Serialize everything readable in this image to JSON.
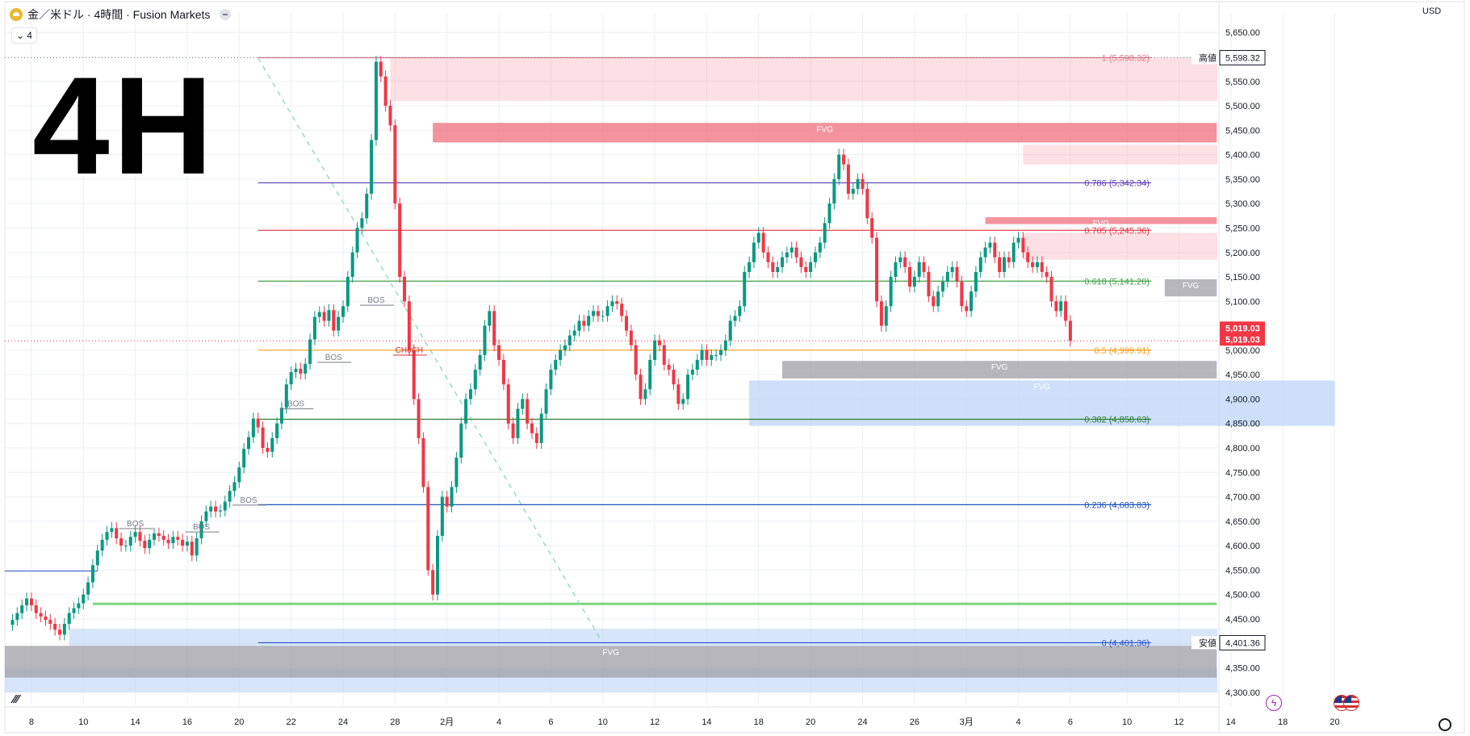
{
  "header": {
    "title": "金／米ドル · 4時間 · Fusion Markets",
    "collapse_label": "4",
    "timeframe_big": "4H",
    "currency": "USD"
  },
  "colors": {
    "up": "#089981",
    "down": "#f23645",
    "fvg_red": "#f7a6ae",
    "fvg_red_strong": "#ee6f7d",
    "fvg_blue": "#bcd4f7",
    "fvg_gray": "#9e9ea6",
    "price_tag": "#f23645"
  },
  "chart_data": {
    "type": "candlestick",
    "symbol": "金／米ドル",
    "interval": "4時間",
    "broker": "Fusion Markets",
    "ylim": [
      4270,
      5690
    ],
    "y_ticks": [
      4300,
      4350,
      4400,
      4450,
      4500,
      4550,
      4600,
      4650,
      4700,
      4750,
      4800,
      4850,
      4900,
      4950,
      5000,
      5050,
      5100,
      5150,
      5200,
      5250,
      5300,
      5350,
      5400,
      5450,
      5500,
      5550,
      5600,
      5650
    ],
    "y_tick_labels": [
      "4,300.00",
      "4,350.00",
      "4,400.00",
      "4,450.00",
      "4,500.00",
      "4,550.00",
      "4,600.00",
      "4,650.00",
      "4,700.00",
      "4,750.00",
      "4,800.00",
      "4,850.00",
      "4,900.00",
      "4,950.00",
      "5,000.00",
      "5,050.00",
      "5,100.00",
      "5,150.00",
      "5,200.00",
      "5,250.00",
      "5,300.00",
      "5,350.00",
      "5,400.00",
      "5,450.00",
      "5,500.00",
      "5,550.00",
      "5,600.00",
      "5,650.00"
    ],
    "x_ticks": [
      {
        "label": "8",
        "i": 4
      },
      {
        "label": "10",
        "i": 15
      },
      {
        "label": "14",
        "i": 26
      },
      {
        "label": "16",
        "i": 37
      },
      {
        "label": "20",
        "i": 48
      },
      {
        "label": "22",
        "i": 59
      },
      {
        "label": "24",
        "i": 70
      },
      {
        "label": "28",
        "i": 81
      },
      {
        "label": "2月",
        "i": 92
      },
      {
        "label": "4",
        "i": 103
      },
      {
        "label": "6",
        "i": 114
      },
      {
        "label": "10",
        "i": 125
      },
      {
        "label": "12",
        "i": 136
      },
      {
        "label": "14",
        "i": 147
      },
      {
        "label": "18",
        "i": 158
      },
      {
        "label": "20",
        "i": 169
      },
      {
        "label": "24",
        "i": 180
      },
      {
        "label": "26",
        "i": 191
      },
      {
        "label": "3月",
        "i": 202
      },
      {
        "label": "4",
        "i": 213
      },
      {
        "label": "6",
        "i": 224
      },
      {
        "label": "10",
        "i": 236
      },
      {
        "label": "12",
        "i": 247
      },
      {
        "label": "14",
        "i": 258
      },
      {
        "label": "18",
        "i": 269
      },
      {
        "label": "20",
        "i": 280
      }
    ],
    "closes": [
      4448,
      4462,
      4478,
      4492,
      4478,
      4462,
      4455,
      4448,
      4440,
      4428,
      4418,
      4440,
      4462,
      4472,
      4482,
      4500,
      4525,
      4560,
      4590,
      4612,
      4628,
      4636,
      4615,
      4600,
      4600,
      4618,
      4628,
      4610,
      4595,
      4612,
      4625,
      4620,
      4612,
      4605,
      4618,
      4612,
      4600,
      4608,
      4580,
      4615,
      4650,
      4670,
      4680,
      4670,
      4672,
      4690,
      4712,
      4730,
      4760,
      4798,
      4822,
      4860,
      4842,
      4800,
      4792,
      4820,
      4850,
      4882,
      4930,
      4955,
      4962,
      4952,
      4972,
      5022,
      5068,
      5078,
      5060,
      5082,
      5040,
      5068,
      5090,
      5150,
      5200,
      5250,
      5270,
      5320,
      5430,
      5590,
      5560,
      5500,
      5460,
      5300,
      5150,
      5100,
      5000,
      4900,
      4820,
      4720,
      4550,
      4500,
      4620,
      4700,
      4680,
      4720,
      4780,
      4850,
      4900,
      4920,
      4960,
      4990,
      5050,
      5080,
      5010,
      4980,
      4930,
      4850,
      4820,
      4880,
      4900,
      4850,
      4830,
      4810,
      4870,
      4920,
      4960,
      4980,
      5000,
      5010,
      5030,
      5040,
      5060,
      5050,
      5070,
      5080,
      5070,
      5070,
      5090,
      5100,
      5095,
      5070,
      5040,
      5010,
      4950,
      4900,
      4920,
      4980,
      5020,
      5010,
      4970,
      4960,
      4930,
      4890,
      4900,
      4950,
      4960,
      4980,
      5000,
      4980,
      4990,
      4990,
      5000,
      5020,
      5060,
      5070,
      5090,
      5160,
      5180,
      5220,
      5240,
      5200,
      5180,
      5160,
      5170,
      5190,
      5200,
      5210,
      5190,
      5170,
      5160,
      5180,
      5200,
      5220,
      5260,
      5300,
      5350,
      5400,
      5380,
      5320,
      5330,
      5350,
      5330,
      5270,
      5230,
      5100,
      5050,
      5090,
      5150,
      5180,
      5190,
      5170,
      5130,
      5150,
      5180,
      5160,
      5110,
      5090,
      5120,
      5140,
      5160,
      5170,
      5140,
      5090,
      5080,
      5120,
      5160,
      5190,
      5210,
      5220,
      5190,
      5160,
      5190,
      5180,
      5220,
      5230,
      5200,
      5180,
      5170,
      5180,
      5160,
      5150,
      5100,
      5080,
      5100,
      5060,
      5019
    ],
    "horizontal_levels": [
      {
        "label": "0.786 (5,342.34)",
        "value": 5342.34,
        "color": "#5b3fb5"
      },
      {
        "label": "0.705 (5,245.36)",
        "value": 5245.36,
        "color": "#e0303e"
      },
      {
        "label": "0.618 (5,141.20)",
        "value": 5141.2,
        "color": "#43a047"
      },
      {
        "label": "0.5 (4,999.91)",
        "value": 4999.91,
        "color": "#f59d1a"
      },
      {
        "label": "0.382 (4,858.63)",
        "value": 4858.63,
        "color": "#2e7d32"
      },
      {
        "label": "0.236 (4,683.83)",
        "value": 4683.83,
        "color": "#1e53b7"
      },
      {
        "label": "1 (5,598.32)",
        "value": 5598.32,
        "color": "#e57b8a"
      },
      {
        "label": "0 (4,401.36)",
        "value": 4401.36,
        "color": "#2952c9"
      }
    ],
    "fvg_zones": [
      {
        "label": "FVG",
        "top": 5465,
        "bottom": 5425,
        "i0": 89,
        "i1": 255,
        "color": "fvg_red_strong"
      },
      {
        "label": "FVG",
        "top": 5272,
        "bottom": 5258,
        "i0": 206,
        "i1": 255,
        "color": "fvg_red_strong"
      },
      {
        "label": "FVG",
        "top": 4978,
        "bottom": 4942,
        "i0": 163,
        "i1": 255,
        "color": "fvg_gray"
      },
      {
        "label": "FVG",
        "top": 4938,
        "bottom": 4845,
        "i0": 156,
        "i1": 280,
        "color": "fvg_blue"
      },
      {
        "label": "FVG",
        "top": 4395,
        "bottom": 4330,
        "i0": 0,
        "i1": 255,
        "color": "fvg_gray"
      },
      {
        "label": "FVG",
        "top": 5145,
        "bottom": 5110,
        "i0": 244,
        "i1": 255,
        "color": "fvg_gray"
      }
    ],
    "structure_labels": [
      {
        "label": "BOS",
        "value": 4635,
        "i": 26
      },
      {
        "label": "BOS",
        "value": 4628,
        "i": 40
      },
      {
        "label": "BOS",
        "value": 4683,
        "i": 50
      },
      {
        "label": "BOS",
        "value": 4880,
        "i": 60
      },
      {
        "label": "BOS",
        "value": 4975,
        "i": 68
      },
      {
        "label": "BOS",
        "value": 5092,
        "i": 77
      },
      {
        "label": "CHoCH",
        "value": 4990,
        "i": 84
      }
    ],
    "axis_tags": [
      {
        "label": "高値",
        "value": 5598.32,
        "text": "5,598.32"
      },
      {
        "label": "安値",
        "value": 4401.36,
        "text": "4,401.36"
      }
    ],
    "last_price": {
      "value": 5019.03,
      "text": "5,019.03"
    }
  }
}
